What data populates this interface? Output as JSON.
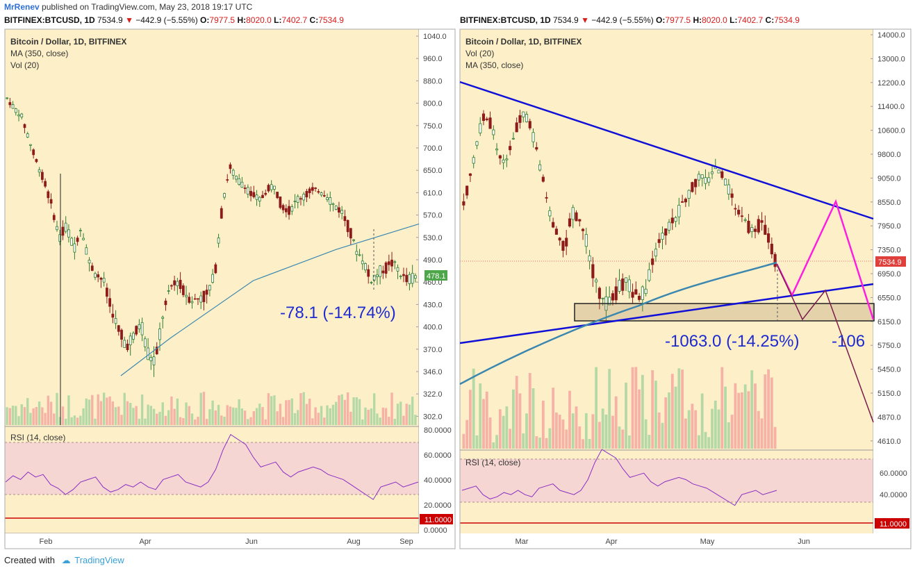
{
  "header": {
    "author": "MrRenev",
    "published": "published on TradingView.com, May 23, 2018 19:17 UTC"
  },
  "symbol_bar": {
    "symbol": "BITFINEX:BTCUSD, 1D",
    "last": "7534.9",
    "change": "−442.9 (−5.55%)",
    "o_label": "O:",
    "o": "7977.5",
    "h_label": "H:",
    "h": "8020.0",
    "l_label": "L:",
    "l": "7402.7",
    "c_label": "C:",
    "c": "7534.9"
  },
  "footer": {
    "created_with": "Created with",
    "brand": "TradingView"
  },
  "colors": {
    "background": "#fdf0c8",
    "up": "#2e7d32",
    "down": "#8e1b1b",
    "ma": "#3b87b0",
    "trendline": "#1010d8",
    "projection_magenta": "#ff1ee0",
    "projection_dark": "#7a1a4a",
    "rsi": "#8a2fc4",
    "rsi_band": "#f6d6d2",
    "price_tag": "#e0403c",
    "green_tag": "#4ea64a",
    "level_line": "#cc0000"
  },
  "chart_data": [
    {
      "type": "candlestick",
      "legend": [
        "Bitcoin / Dollar, 1D, BITFINEX",
        "MA (350, close)",
        "Vol (20)"
      ],
      "y_ticks": [
        "1040.0",
        "960.0",
        "880.0",
        "800.0",
        "750.0",
        "700.0",
        "650.0",
        "610.0",
        "570.0",
        "530.0",
        "490.0",
        "460.0",
        "430.0",
        "400.0",
        "370.0",
        "346.0",
        "322.0",
        "302.0"
      ],
      "x_ticks": [
        "Feb",
        "Apr",
        "Jun",
        "Aug",
        "Sep"
      ],
      "last_price_tag": "478.1",
      "measure_label": "-78.1 (-14.74%)",
      "close_path": [
        850,
        820,
        800,
        740,
        690,
        650,
        600,
        540,
        560,
        520,
        560,
        500,
        480,
        470,
        430,
        400,
        380,
        390,
        410,
        370,
        360,
        420,
        460,
        470,
        450,
        440,
        445,
        450,
        480,
        600,
        680,
        650,
        640,
        620,
        610,
        630,
        640,
        600,
        590,
        610,
        620,
        630,
        630,
        620,
        600,
        590,
        560,
        520,
        500,
        470,
        480,
        490,
        500,
        480,
        470,
        475
      ],
      "rsi": {
        "label": "RSI (14, close)",
        "ticks": [
          "80.0000",
          "60.0000",
          "40.0000",
          "20.0000",
          "0.0000"
        ],
        "level_tag": "11.0000",
        "values": [
          40,
          45,
          42,
          48,
          44,
          46,
          38,
          35,
          30,
          34,
          40,
          42,
          44,
          36,
          32,
          34,
          38,
          36,
          40,
          36,
          34,
          42,
          44,
          46,
          40,
          38,
          36,
          40,
          50,
          66,
          78,
          74,
          70,
          60,
          52,
          54,
          56,
          48,
          44,
          48,
          50,
          52,
          50,
          46,
          44,
          42,
          38,
          34,
          30,
          26,
          36,
          38,
          40,
          36,
          38,
          40
        ]
      },
      "ma_points": [
        [
          0.28,
          345
        ],
        [
          0.4,
          390
        ],
        [
          0.6,
          470
        ],
        [
          0.8,
          520
        ],
        [
          1.0,
          565
        ]
      ]
    },
    {
      "type": "candlestick",
      "legend": [
        "Bitcoin / Dollar, 1D, BITFINEX",
        "Vol (20)",
        "MA (350, close)"
      ],
      "y_ticks": [
        "14000.0",
        "13000.0",
        "12200.0",
        "11400.0",
        "10600.0",
        "9800.0",
        "9050.0",
        "8550.0",
        "7950.0",
        "7350.0",
        "6950.0",
        "6550.0",
        "6150.0",
        "5750.0",
        "5450.0",
        "5150.0",
        "4870.0",
        "4610.0"
      ],
      "x_ticks": [
        "Mar",
        "Apr",
        "May",
        "Jun"
      ],
      "last_price_tag": "7534.9",
      "measure_label": "-1063.0 (-14.25%)",
      "measure_label_cut": "-106",
      "close_path": [
        8800,
        9500,
        10500,
        11200,
        11000,
        10200,
        9800,
        10300,
        11000,
        11300,
        10800,
        10000,
        9200,
        8400,
        8100,
        7800,
        8600,
        8400,
        8000,
        7400,
        6900,
        6700,
        6800,
        7000,
        7200,
        6900,
        6800,
        7000,
        7600,
        8000,
        8200,
        8400,
        8700,
        9000,
        9300,
        9500,
        9400,
        9700,
        9600,
        9200,
        8800,
        8500,
        8300,
        8200,
        8400,
        8000,
        7534
      ]
    }
  ]
}
